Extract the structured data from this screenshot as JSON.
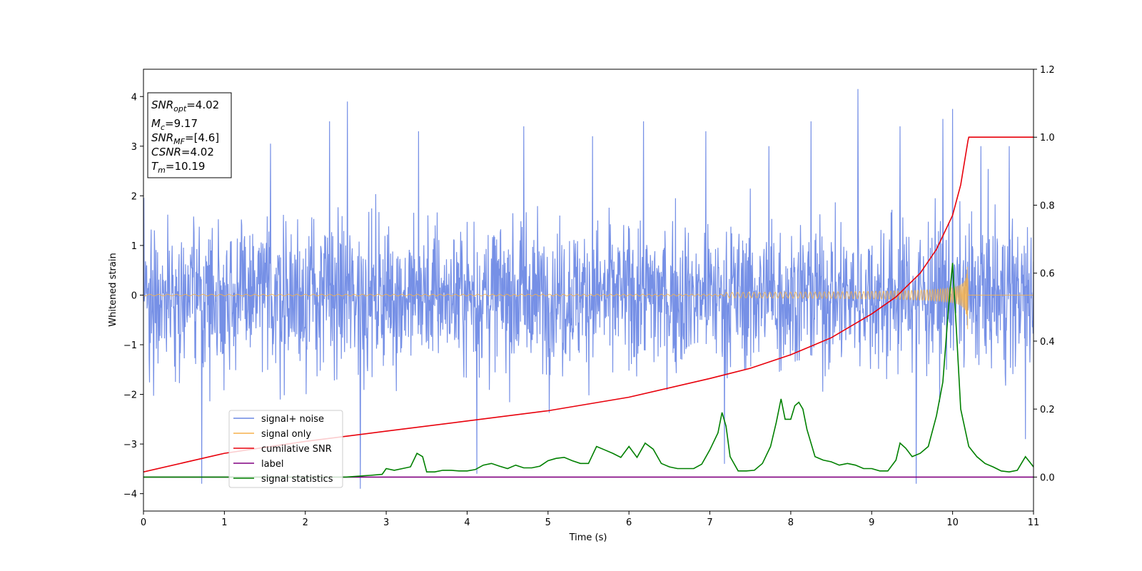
{
  "chart_data": {
    "type": "line",
    "xlabel": "Time (s)",
    "ylabel": "Whitened strain",
    "xlim": [
      0,
      11
    ],
    "ylim": [
      -4.35,
      4.55
    ],
    "ylim_right": [
      -0.1,
      1.2
    ],
    "xticks": [
      "0",
      "1",
      "2",
      "3",
      "4",
      "5",
      "6",
      "7",
      "8",
      "9",
      "10",
      "11"
    ],
    "yticks": [
      "−4",
      "−3",
      "−2",
      "−1",
      "0",
      "1",
      "2",
      "3",
      "4"
    ],
    "yticks_right": [
      "0.0",
      "0.2",
      "0.4",
      "0.6",
      "0.8",
      "1.0",
      "1.2"
    ],
    "grid": false,
    "legend_position": "lower-left",
    "annotation": {
      "snr_opt": {
        "name": "SNR",
        "sub": "opt",
        "value": "=4.02"
      },
      "mc": {
        "name": "M",
        "sub": "c",
        "value": "=9.17"
      },
      "snr_mf": {
        "name": "SNR",
        "sub": "MF",
        "value": "=[4.6]"
      },
      "csnr": {
        "name": "CSNR",
        "value": "=4.02"
      },
      "tm": {
        "name": "T",
        "sub": "m",
        "value": "=10.19"
      }
    },
    "series": [
      {
        "name": "signal+ noise",
        "color": "#6a87e4",
        "axis": "left",
        "description_values": "dense whitened noise between about -3.9 and 4.2",
        "x_range": [
          0,
          11
        ],
        "spikes": [
          [
            0.72,
            -3.8
          ],
          [
            1.57,
            3.05
          ],
          [
            2.3,
            3.5
          ],
          [
            2.52,
            3.9
          ],
          [
            2.68,
            -3.9
          ],
          [
            3.4,
            3.3
          ],
          [
            4.12,
            -3.6
          ],
          [
            4.7,
            3.4
          ],
          [
            5.55,
            3.2
          ],
          [
            6.18,
            3.5
          ],
          [
            6.95,
            3.3
          ],
          [
            7.18,
            -3.4
          ],
          [
            7.73,
            3.0
          ],
          [
            8.25,
            3.5
          ],
          [
            8.83,
            4.15
          ],
          [
            9.35,
            3.4
          ],
          [
            9.55,
            -3.8
          ],
          [
            9.88,
            3.55
          ],
          [
            10.0,
            3.75
          ],
          [
            10.35,
            3.0
          ],
          [
            10.7,
            3.0
          ],
          [
            10.9,
            -2.9
          ]
        ]
      },
      {
        "name": "signal only",
        "color": "#f5b14b",
        "axis": "left",
        "merger_time": 10.19,
        "peak_amplitude": 0.7
      },
      {
        "name": "cumilative SNR",
        "color": "#e8000b",
        "axis": "right",
        "x": [
          0,
          1,
          2,
          3,
          4,
          5,
          6,
          7,
          7.5,
          8,
          8.5,
          9,
          9.3,
          9.6,
          9.8,
          10.0,
          10.1,
          10.19,
          10.2,
          11
        ],
        "values": [
          0.015,
          0.07,
          0.105,
          0.135,
          0.165,
          0.195,
          0.235,
          0.29,
          0.32,
          0.36,
          0.41,
          0.48,
          0.53,
          0.6,
          0.67,
          0.77,
          0.86,
          0.99,
          1.0,
          1.0
        ]
      },
      {
        "name": "label",
        "color": "#800080",
        "axis": "right",
        "x": [
          0,
          11
        ],
        "values": [
          0,
          0
        ]
      },
      {
        "name": "signal statistics",
        "color": "#008000",
        "axis": "right",
        "x": [
          0,
          0.5,
          1,
          1.5,
          2,
          2.5,
          2.8,
          2.95,
          3.0,
          3.1,
          3.2,
          3.3,
          3.38,
          3.45,
          3.5,
          3.6,
          3.7,
          3.8,
          3.9,
          4.0,
          4.1,
          4.2,
          4.3,
          4.4,
          4.5,
          4.6,
          4.7,
          4.8,
          4.9,
          5.0,
          5.1,
          5.2,
          5.3,
          5.4,
          5.5,
          5.6,
          5.7,
          5.8,
          5.9,
          6.0,
          6.1,
          6.2,
          6.3,
          6.4,
          6.5,
          6.6,
          6.7,
          6.8,
          6.9,
          7.0,
          7.1,
          7.15,
          7.2,
          7.25,
          7.35,
          7.45,
          7.55,
          7.65,
          7.75,
          7.82,
          7.88,
          7.93,
          8.0,
          8.05,
          8.1,
          8.15,
          8.2,
          8.3,
          8.4,
          8.5,
          8.6,
          8.7,
          8.8,
          8.9,
          9.0,
          9.1,
          9.2,
          9.3,
          9.35,
          9.42,
          9.5,
          9.6,
          9.7,
          9.8,
          9.88,
          9.95,
          10.0,
          10.05,
          10.1,
          10.2,
          10.3,
          10.4,
          10.5,
          10.6,
          10.7,
          10.8,
          10.9,
          11.0
        ],
        "values": [
          0.0,
          0.0,
          0.0,
          0.0,
          0.0,
          0.0,
          0.005,
          0.008,
          0.025,
          0.02,
          0.025,
          0.03,
          0.07,
          0.06,
          0.015,
          0.015,
          0.02,
          0.02,
          0.018,
          0.018,
          0.022,
          0.035,
          0.04,
          0.032,
          0.025,
          0.035,
          0.027,
          0.027,
          0.032,
          0.048,
          0.055,
          0.058,
          0.048,
          0.04,
          0.04,
          0.09,
          0.08,
          0.07,
          0.058,
          0.09,
          0.058,
          0.1,
          0.082,
          0.04,
          0.03,
          0.025,
          0.025,
          0.025,
          0.038,
          0.08,
          0.13,
          0.19,
          0.15,
          0.06,
          0.018,
          0.018,
          0.02,
          0.04,
          0.09,
          0.16,
          0.23,
          0.17,
          0.17,
          0.21,
          0.22,
          0.2,
          0.14,
          0.06,
          0.05,
          0.045,
          0.035,
          0.04,
          0.035,
          0.025,
          0.025,
          0.018,
          0.018,
          0.05,
          0.1,
          0.085,
          0.06,
          0.07,
          0.09,
          0.18,
          0.28,
          0.5,
          0.63,
          0.42,
          0.2,
          0.09,
          0.06,
          0.04,
          0.03,
          0.018,
          0.015,
          0.02,
          0.06,
          0.03
        ]
      }
    ]
  }
}
